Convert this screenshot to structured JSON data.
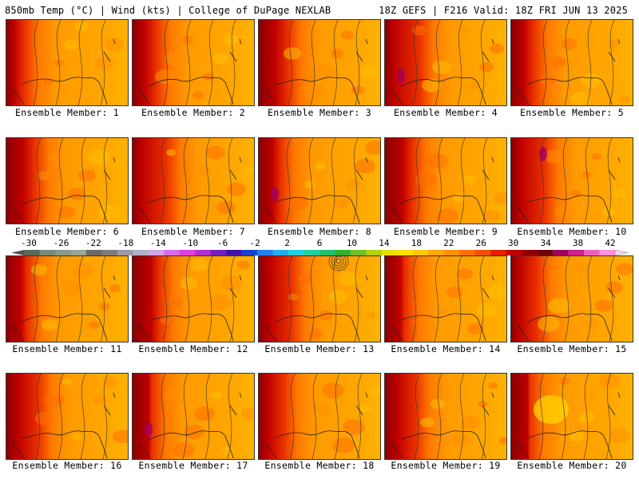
{
  "header": {
    "left": "850mb Temp (°C) | Wind (kts) | College of DuPage NEXLAB",
    "right": "18Z GEFS | F216 Valid: 18Z FRI JUN 13 2025"
  },
  "members": [
    "Ensemble Member: 1",
    "Ensemble Member: 2",
    "Ensemble Member: 3",
    "Ensemble Member: 4",
    "Ensemble Member: 5",
    "Ensemble Member: 6",
    "Ensemble Member: 7",
    "Ensemble Member: 8",
    "Ensemble Member: 9",
    "Ensemble Member: 10",
    "Ensemble Member: 11",
    "Ensemble Member: 12",
    "Ensemble Member: 13",
    "Ensemble Member: 14",
    "Ensemble Member: 15",
    "Ensemble Member: 16",
    "Ensemble Member: 17",
    "Ensemble Member: 18",
    "Ensemble Member: 19",
    "Ensemble Member: 20"
  ],
  "scale": {
    "labels": [
      "-30",
      "-26",
      "-22",
      "-18",
      "-14",
      "-10",
      "-6",
      "-2",
      "2",
      "6",
      "10",
      "14",
      "18",
      "22",
      "26",
      "30",
      "34",
      "38",
      "42"
    ],
    "colors": [
      "#5a6a5a",
      "#7a8a7a",
      "#8a9a8a",
      "#9aa59a",
      "#6a6a6a",
      "#7c7c7c",
      "#9a9aa8",
      "#b0b0c8",
      "#c9a8e8",
      "#d36ee8",
      "#e040e0",
      "#b030d0",
      "#7020c0",
      "#4010b0",
      "#1a40d0",
      "#2080f0",
      "#20b0f0",
      "#20d0e0",
      "#20d0a0",
      "#20c070",
      "#30b030",
      "#70c020",
      "#b0d010",
      "#e8e000",
      "#ffe000",
      "#ffc800",
      "#ffa800",
      "#ff9000",
      "#ff7000",
      "#f05000",
      "#e02000",
      "#c00000",
      "#900000",
      "#700010",
      "#a00060",
      "#d02090",
      "#f060c0",
      "#ff90e0"
    ]
  }
}
